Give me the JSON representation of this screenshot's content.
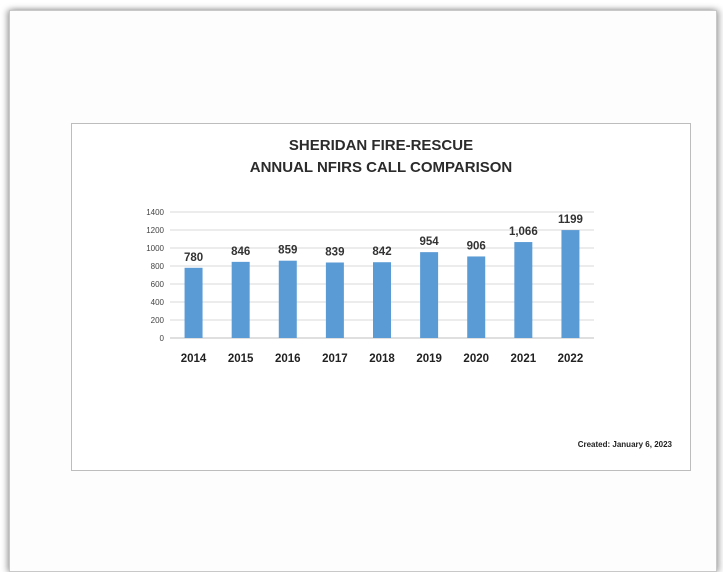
{
  "chart_data": {
    "type": "bar",
    "title": "SHERIDAN FIRE-RESCUE",
    "subtitle": "ANNUAL NFIRS CALL COMPARISON",
    "categories": [
      "2014",
      "2015",
      "2016",
      "2017",
      "2018",
      "2019",
      "2020",
      "2021",
      "2022"
    ],
    "values": [
      780,
      846,
      859,
      839,
      842,
      954,
      906,
      1066,
      1199
    ],
    "data_labels": [
      "780",
      "846",
      "859",
      "839",
      "842",
      "954",
      "906",
      "1,066",
      "1199"
    ],
    "ylim": [
      0,
      1400
    ],
    "yticks": [
      0,
      200,
      400,
      600,
      800,
      1000,
      1200,
      1400
    ],
    "grid": true,
    "bar_color": "#5b9bd5",
    "xlabel": "",
    "ylabel": ""
  },
  "note": {
    "created": "Created:  January 6, 2023"
  }
}
